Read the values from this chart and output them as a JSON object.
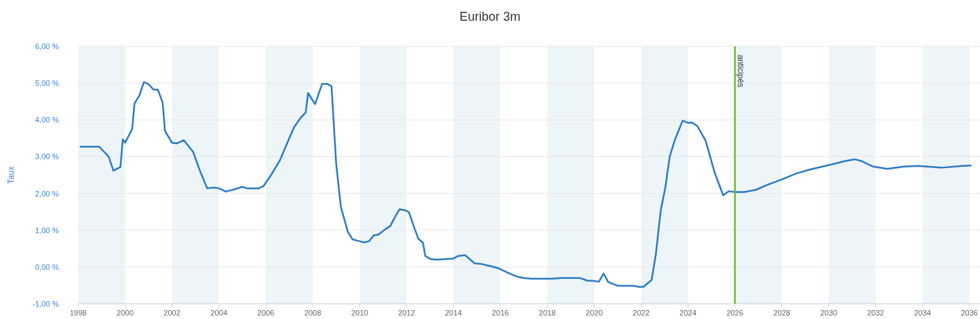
{
  "chart_data": {
    "type": "line",
    "title": "Euribor 3m",
    "ylabel": "Taux",
    "x": [
      1998.1,
      1998.9,
      1999.3,
      1999.5,
      1999.8,
      1999.9,
      2000.0,
      2000.3,
      2000.4,
      2000.6,
      2000.8,
      2001.0,
      2001.2,
      2001.4,
      2001.6,
      2001.7,
      2002.0,
      2002.2,
      2002.5,
      2002.9,
      2003.2,
      2003.5,
      2003.8,
      2004.0,
      2004.3,
      2004.6,
      2005.0,
      2005.2,
      2005.7,
      2005.9,
      2006.2,
      2006.6,
      2007.0,
      2007.2,
      2007.5,
      2007.7,
      2007.8,
      2008.1,
      2008.4,
      2008.6,
      2008.8,
      2009.0,
      2009.2,
      2009.5,
      2009.7,
      2010.0,
      2010.2,
      2010.4,
      2010.6,
      2010.8,
      2011.1,
      2011.3,
      2011.5,
      2011.7,
      2011.9,
      2012.1,
      2012.3,
      2012.5,
      2012.7,
      2012.8,
      2013.0,
      2013.3,
      2013.7,
      2014.0,
      2014.2,
      2014.5,
      2014.9,
      2015.2,
      2015.6,
      2015.9,
      2016.3,
      2016.7,
      2017.0,
      2017.3,
      2018.2,
      2018.6,
      2019.4,
      2019.7,
      2020.0,
      2020.2,
      2020.4,
      2020.6,
      2021.0,
      2021.7,
      2021.9,
      2022.1,
      2022.45,
      2022.63,
      2022.84,
      2023.03,
      2023.22,
      2023.43,
      2023.77,
      2024.0,
      2024.17,
      2024.4,
      2024.75,
      2025.14,
      2025.5,
      2025.73,
      2026.0,
      2026.4,
      2026.9,
      2027.4,
      2028.0,
      2028.6,
      2029.2,
      2029.8,
      2030.2,
      2030.7,
      2031.1,
      2031.4,
      2031.9,
      2032.5,
      2033.2,
      2033.8,
      2034.8,
      2035.7,
      2036.05
    ],
    "series": [
      {
        "color": "#2a7ac6",
        "values": [
          3.27,
          3.27,
          3.0,
          2.62,
          2.72,
          3.47,
          3.38,
          3.75,
          4.45,
          4.65,
          5.03,
          4.97,
          4.83,
          4.82,
          4.47,
          3.7,
          3.38,
          3.36,
          3.45,
          3.13,
          2.6,
          2.14,
          2.16,
          2.14,
          2.05,
          2.1,
          2.18,
          2.14,
          2.14,
          2.2,
          2.48,
          2.9,
          3.5,
          3.8,
          4.07,
          4.2,
          4.73,
          4.43,
          4.98,
          4.98,
          4.92,
          2.8,
          1.63,
          0.95,
          0.75,
          0.7,
          0.67,
          0.7,
          0.86,
          0.88,
          1.03,
          1.11,
          1.35,
          1.57,
          1.55,
          1.49,
          1.12,
          0.77,
          0.66,
          0.3,
          0.22,
          0.2,
          0.22,
          0.23,
          0.3,
          0.32,
          0.1,
          0.08,
          0.02,
          -0.03,
          -0.15,
          -0.26,
          -0.3,
          -0.32,
          -0.32,
          -0.3,
          -0.3,
          -0.37,
          -0.38,
          -0.4,
          -0.18,
          -0.41,
          -0.51,
          -0.51,
          -0.54,
          -0.54,
          -0.35,
          0.35,
          1.55,
          2.15,
          3.0,
          3.44,
          3.98,
          3.92,
          3.93,
          3.83,
          3.44,
          2.56,
          1.95,
          2.06,
          2.04,
          2.04,
          2.1,
          2.24,
          2.38,
          2.54,
          2.65,
          2.74,
          2.8,
          2.88,
          2.93,
          2.88,
          2.73,
          2.67,
          2.73,
          2.75,
          2.7,
          2.75,
          2.76
        ]
      }
    ],
    "xlim": [
      1998,
      2036.45
    ],
    "xticks": [
      1998,
      2000,
      2002,
      2004,
      2006,
      2008,
      2010,
      2012,
      2014,
      2016,
      2018,
      2020,
      2022,
      2024,
      2026,
      2028,
      2030,
      2032,
      2034,
      2036
    ],
    "ylim": [
      -1,
      6
    ],
    "yticks": [
      {
        "value": -1,
        "label": "-1,00 %"
      },
      {
        "value": 0,
        "label": "0,00 %"
      },
      {
        "value": 1,
        "label": "1,00 %"
      },
      {
        "value": 2,
        "label": "2,00 %"
      },
      {
        "value": 3,
        "label": "3,00 %"
      },
      {
        "value": 4,
        "label": "4,00 %"
      },
      {
        "value": 5,
        "label": "5,00 %"
      },
      {
        "value": 6,
        "label": "6,00 %"
      }
    ],
    "grid": "y",
    "marker": "none",
    "line_style": "solid",
    "ref_lines": [
      {
        "axis": "x",
        "value": 2026,
        "label": "anticipés",
        "color": "#66bb33"
      }
    ],
    "bands": [
      {
        "axis": "x",
        "from": 1998,
        "to": 2000,
        "color": "#eef5f9"
      },
      {
        "axis": "x",
        "from": 2002,
        "to": 2004,
        "color": "#eef5f9"
      },
      {
        "axis": "x",
        "from": 2006,
        "to": 2008,
        "color": "#eef5f9"
      },
      {
        "axis": "x",
        "from": 2010,
        "to": 2012,
        "color": "#eef5f9"
      },
      {
        "axis": "x",
        "from": 2014,
        "to": 2016,
        "color": "#eef5f9"
      },
      {
        "axis": "x",
        "from": 2018,
        "to": 2020,
        "color": "#eef5f9"
      },
      {
        "axis": "x",
        "from": 2022,
        "to": 2024,
        "color": "#eef5f9"
      },
      {
        "axis": "x",
        "from": 2026,
        "to": 2028,
        "color": "#eef5f9"
      },
      {
        "axis": "x",
        "from": 2030,
        "to": 2032,
        "color": "#eef5f9"
      },
      {
        "axis": "x",
        "from": 2034,
        "to": 2036,
        "color": "#eef5f9"
      }
    ]
  }
}
